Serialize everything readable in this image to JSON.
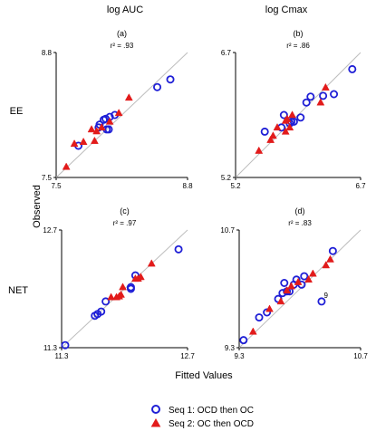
{
  "figure": {
    "column_titles": [
      "log AUC",
      "log Cmax"
    ],
    "row_titles": [
      "EE",
      "NET"
    ],
    "y_axis_title": "Observed",
    "x_axis_title": "Fitted Values"
  },
  "legend": {
    "entries": [
      {
        "marker": "circle",
        "color": "#1f1fd6",
        "label": "Seq 1:  OCD then OC"
      },
      {
        "marker": "triangle",
        "color": "#e21b1b",
        "label": "Seq 2:  OC then OCD"
      }
    ]
  },
  "colors": {
    "seq1": "#1f1fd6",
    "seq2": "#e21b1b",
    "identity_line": "#bdbdbd"
  },
  "chart_data": [
    {
      "type": "scatter",
      "panel": "(a)",
      "r2_text": "r² =  .93",
      "xlim": [
        7.5,
        8.8
      ],
      "ylim": [
        7.5,
        8.8
      ],
      "x_ticks": [
        "7.5",
        "8.8"
      ],
      "y_ticks": [
        "7.5",
        "8.8"
      ],
      "identity_line": true,
      "series": [
        {
          "name": "Seq 1:  OCD then OC",
          "marker": "circle",
          "points": [
            [
              7.72,
              7.83
            ],
            [
              7.92,
              8.02
            ],
            [
              7.93,
              8.05
            ],
            [
              7.97,
              8.1
            ],
            [
              7.99,
              8.11
            ],
            [
              8.03,
              8.13
            ],
            [
              8.08,
              8.15
            ],
            [
              8.0,
              8.0
            ],
            [
              8.02,
              8.0
            ],
            [
              8.5,
              8.44
            ],
            [
              8.63,
              8.52
            ]
          ]
        },
        {
          "name": "Seq 2:  OC then OCD",
          "marker": "triangle",
          "points": [
            [
              7.6,
              7.61
            ],
            [
              7.68,
              7.85
            ],
            [
              7.77,
              7.87
            ],
            [
              7.85,
              8.0
            ],
            [
              7.88,
              7.88
            ],
            [
              7.9,
              7.98
            ],
            [
              7.95,
              8.02
            ],
            [
              8.03,
              8.08
            ],
            [
              8.12,
              8.17
            ],
            [
              8.22,
              8.33
            ]
          ]
        }
      ]
    },
    {
      "type": "scatter",
      "panel": "(b)",
      "r2_text": "r² =  .86",
      "xlim": [
        5.2,
        6.7
      ],
      "ylim": [
        5.2,
        6.7
      ],
      "x_ticks": [
        "5.2",
        "6.7"
      ],
      "y_ticks": [
        "5.2",
        "6.7"
      ],
      "identity_line": true,
      "series": [
        {
          "name": "Seq 1:  OCD then OC",
          "marker": "circle",
          "points": [
            [
              5.55,
              5.75
            ],
            [
              5.75,
              5.8
            ],
            [
              5.78,
              5.95
            ],
            [
              5.85,
              5.85
            ],
            [
              5.87,
              5.87
            ],
            [
              5.9,
              5.87
            ],
            [
              5.98,
              5.92
            ],
            [
              6.05,
              6.1
            ],
            [
              6.1,
              6.17
            ],
            [
              6.25,
              6.18
            ],
            [
              6.38,
              6.2
            ],
            [
              6.6,
              6.5
            ]
          ]
        },
        {
          "name": "Seq 2:  OC then OCD",
          "marker": "triangle",
          "points": [
            [
              5.48,
              5.52
            ],
            [
              5.62,
              5.65
            ],
            [
              5.65,
              5.7
            ],
            [
              5.7,
              5.8
            ],
            [
              5.8,
              5.75
            ],
            [
              5.8,
              5.88
            ],
            [
              5.82,
              5.9
            ],
            [
              5.85,
              5.8
            ],
            [
              5.88,
              5.95
            ],
            [
              6.22,
              6.1
            ],
            [
              6.28,
              6.28
            ]
          ]
        }
      ]
    },
    {
      "type": "scatter",
      "panel": "(c)",
      "r2_text": "r² =  .97",
      "xlim": [
        11.3,
        12.7
      ],
      "ylim": [
        11.3,
        12.7
      ],
      "x_ticks": [
        "11.3",
        "12.7"
      ],
      "y_ticks": [
        "11.3",
        "12.7"
      ],
      "identity_line": true,
      "series": [
        {
          "name": "Seq 1:  OCD then OC",
          "marker": "circle",
          "points": [
            [
              11.34,
              11.33
            ],
            [
              11.67,
              11.68
            ],
            [
              11.7,
              11.7
            ],
            [
              11.74,
              11.73
            ],
            [
              11.79,
              11.85
            ],
            [
              12.07,
              12.0
            ],
            [
              12.07,
              12.02
            ],
            [
              12.12,
              12.16
            ],
            [
              12.6,
              12.47
            ]
          ]
        },
        {
          "name": "Seq 2:  OC then OCD",
          "marker": "triangle",
          "points": [
            [
              11.85,
              11.9
            ],
            [
              11.91,
              11.9
            ],
            [
              11.94,
              11.91
            ],
            [
              11.96,
              11.93
            ],
            [
              11.98,
              12.02
            ],
            [
              12.12,
              12.12
            ],
            [
              12.15,
              12.12
            ],
            [
              12.18,
              12.14
            ],
            [
              12.3,
              12.3
            ]
          ]
        }
      ]
    },
    {
      "type": "scatter",
      "panel": "(d)",
      "r2_text": "r² =  .83",
      "xlim": [
        9.3,
        10.7
      ],
      "ylim": [
        9.3,
        10.7
      ],
      "x_ticks": [
        "9.3",
        "10.7"
      ],
      "y_ticks": [
        "9.3",
        "10.7"
      ],
      "identity_line": true,
      "annotations": [
        {
          "text": "9",
          "x": 10.3,
          "y": 9.89
        }
      ],
      "series": [
        {
          "name": "Seq 1:  OCD then OC",
          "marker": "circle",
          "points": [
            [
              9.35,
              9.39
            ],
            [
              9.53,
              9.66
            ],
            [
              9.62,
              9.72
            ],
            [
              9.75,
              9.88
            ],
            [
              9.8,
              9.95
            ],
            [
              9.82,
              10.07
            ],
            [
              9.85,
              9.97
            ],
            [
              9.88,
              9.97
            ],
            [
              9.93,
              10.05
            ],
            [
              9.96,
              10.11
            ],
            [
              10.02,
              10.05
            ],
            [
              10.05,
              10.15
            ],
            [
              10.25,
              9.85
            ],
            [
              10.38,
              10.45
            ]
          ]
        },
        {
          "name": "Seq 2:  OC then OCD",
          "marker": "triangle",
          "points": [
            [
              9.46,
              9.49
            ],
            [
              9.65,
              9.76
            ],
            [
              9.78,
              9.85
            ],
            [
              9.85,
              9.98
            ],
            [
              9.9,
              10.03
            ],
            [
              9.98,
              10.08
            ],
            [
              10.1,
              10.11
            ],
            [
              10.15,
              10.18
            ],
            [
              10.3,
              10.28
            ],
            [
              10.35,
              10.35
            ]
          ]
        }
      ]
    }
  ]
}
